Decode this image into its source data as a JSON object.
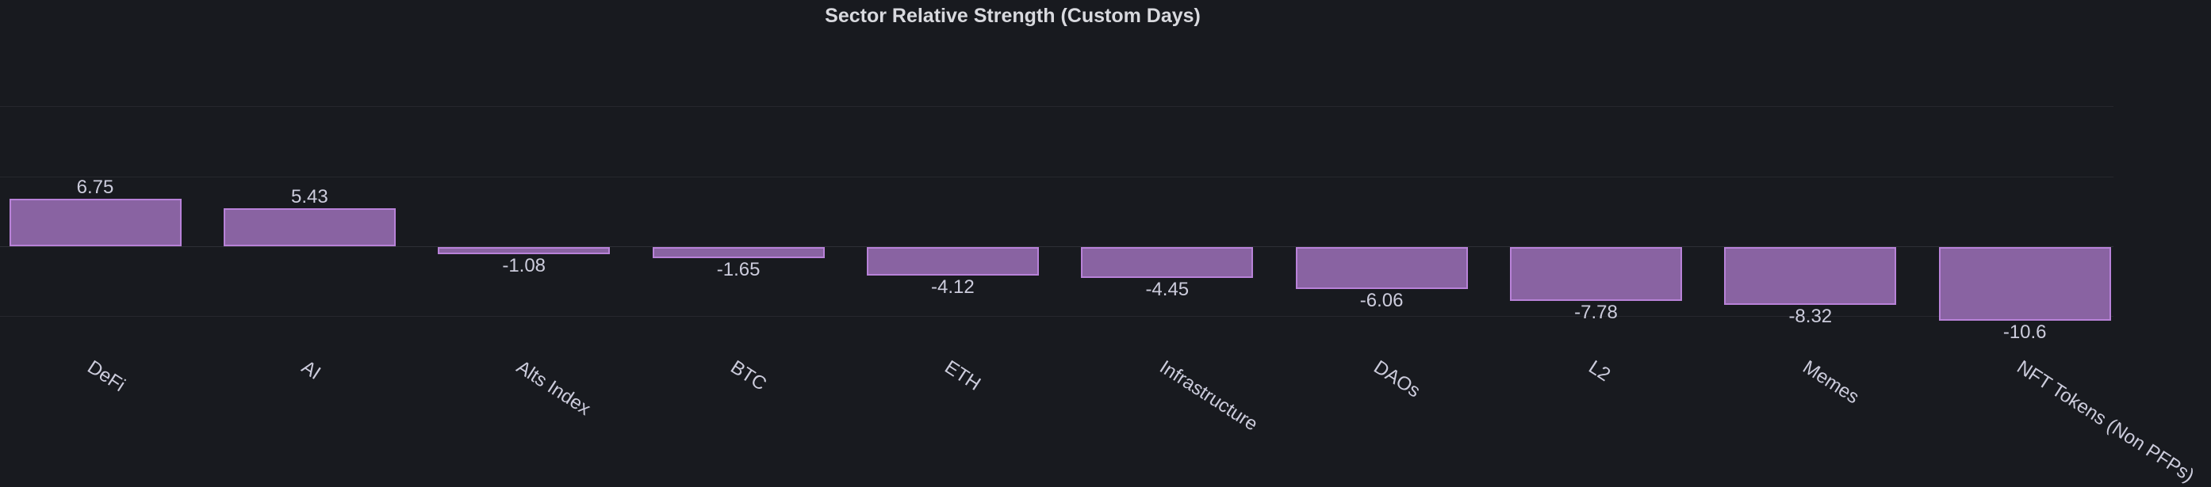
{
  "chart_data": {
    "type": "bar",
    "title": "Sector Relative Strength (Custom Days)",
    "categories": [
      "DeFi",
      "AI",
      "Alts Index",
      "BTC",
      "ETH",
      "Infrastructure",
      "DAOs",
      "L2",
      "Memes",
      "NFT Tokens (Non PFPs)"
    ],
    "values": [
      6.75,
      5.43,
      -1.08,
      -1.65,
      -4.12,
      -4.45,
      -6.06,
      -7.78,
      -8.32,
      -10.6
    ],
    "value_labels": [
      "6.75",
      "5.43",
      "-1.08",
      "-1.65",
      "-4.12",
      "-4.45",
      "-6.06",
      "-7.78",
      "-8.32",
      "-10.6"
    ],
    "xlabel": "",
    "ylabel": "",
    "ylim": [
      -15,
      30
    ],
    "y_gridlines": [
      20,
      10,
      0,
      -10
    ],
    "grid": "horizontal",
    "legend": "none",
    "bar_orientation": "vertical",
    "category_label_rotation_deg": 33
  },
  "colors": {
    "background": "#181a1f",
    "bar_fill": "#8963a2",
    "bar_border": "#b882d8",
    "grid_line": "rgba(204,204,220,0.08)",
    "zero_line": "rgba(204,204,220,0.12)",
    "label_text": "#ccccdc",
    "title_text": "#d8d9de"
  }
}
